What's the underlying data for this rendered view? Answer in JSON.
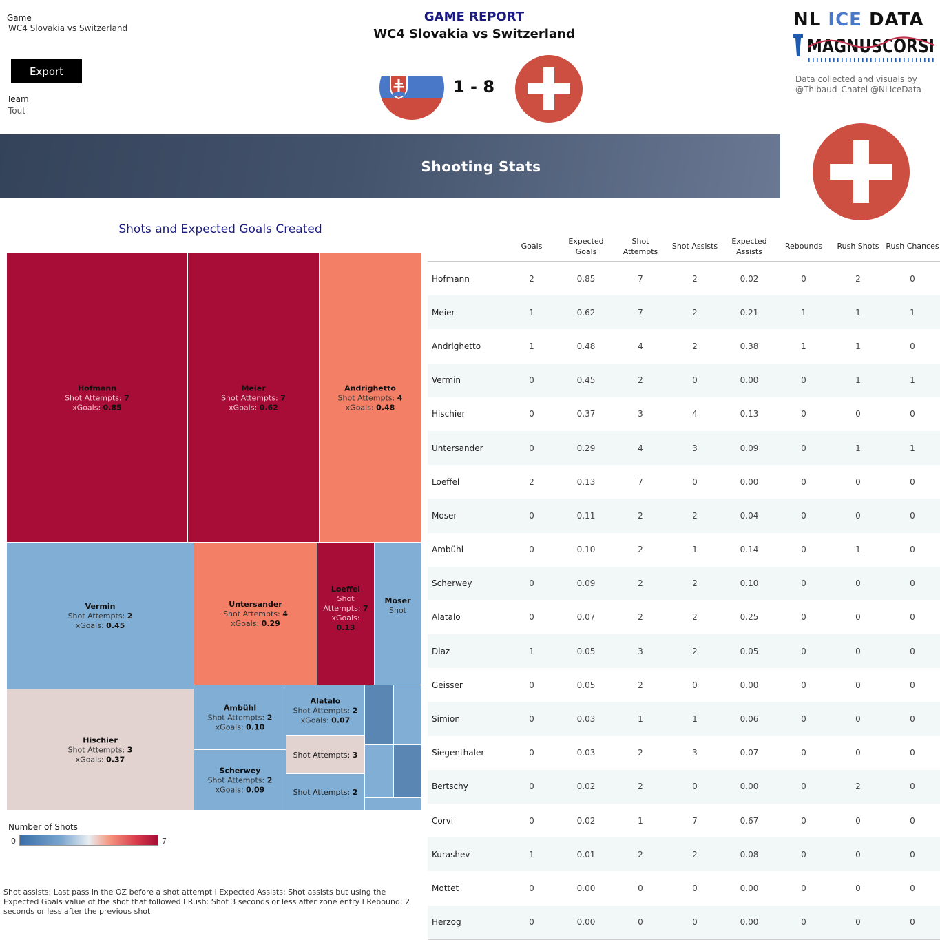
{
  "filters": {
    "game_label": "Game",
    "game_value": "WC4 Slovakia vs Switzerland",
    "export_label": "Export",
    "team_label": "Team",
    "team_value": "Tout"
  },
  "header": {
    "title": "GAME REPORT",
    "subtitle": "WC4 Slovakia vs Switzerland",
    "score": "1 - 8"
  },
  "brand": {
    "name_part1": "NL",
    "name_part2": "ICE",
    "name_part3": "DATA",
    "logo_text": "MAGNUSCORSI",
    "credit_line1": "Data collected and visuals by",
    "credit_line2": "@Thibaud_Chatel @NLIceData"
  },
  "colors": {
    "slovakia_red": "#cd4a3f",
    "slovakia_blue": "#4a78c8",
    "swiss_red": "#cd4f41",
    "title_navy": "#1a1a80"
  },
  "section": {
    "title": "Shooting Stats"
  },
  "treemap_title": "Shots and Expected Goals Created",
  "legend": {
    "title": "Number of Shots",
    "min": "0",
    "max": "7"
  },
  "footnote": "Shot assists: Last pass in the OZ before a shot attempt I Expected Assists: Shot assists but using the Expected Goals value of the shot that followed I Rush: Shot 3 seconds or less after zone entry I Rebound: 2 seconds or less after the previous shot",
  "chart_data": {
    "type": "table",
    "title": "Shots and Expected Goals Created",
    "color_metric": "Number of Shots",
    "color_range": [
      0,
      7
    ],
    "label_attempts": "Shot Attempts:",
    "label_xgoals": "xGoals:",
    "columns": [
      "Goals",
      "Expected Goals",
      "Shot Attempts",
      "Shot Assists",
      "Expected Assists",
      "Rebounds",
      "Rush Shots",
      "Rush Chances"
    ],
    "rows": [
      {
        "player": "Hofmann",
        "goals": "2",
        "xg": "0.85",
        "attempts": "7",
        "assists": "2",
        "xa": "0.02",
        "rebounds": "0",
        "rush_shots": "2",
        "rush_chances": "0"
      },
      {
        "player": "Meier",
        "goals": "1",
        "xg": "0.62",
        "attempts": "7",
        "assists": "2",
        "xa": "0.21",
        "rebounds": "1",
        "rush_shots": "1",
        "rush_chances": "1"
      },
      {
        "player": "Andrighetto",
        "goals": "1",
        "xg": "0.48",
        "attempts": "4",
        "assists": "2",
        "xa": "0.38",
        "rebounds": "1",
        "rush_shots": "1",
        "rush_chances": "0"
      },
      {
        "player": "Vermin",
        "goals": "0",
        "xg": "0.45",
        "attempts": "2",
        "assists": "0",
        "xa": "0.00",
        "rebounds": "0",
        "rush_shots": "1",
        "rush_chances": "1"
      },
      {
        "player": "Hischier",
        "goals": "0",
        "xg": "0.37",
        "attempts": "3",
        "assists": "4",
        "xa": "0.13",
        "rebounds": "0",
        "rush_shots": "0",
        "rush_chances": "0"
      },
      {
        "player": "Untersander",
        "goals": "0",
        "xg": "0.29",
        "attempts": "4",
        "assists": "3",
        "xa": "0.09",
        "rebounds": "0",
        "rush_shots": "1",
        "rush_chances": "1"
      },
      {
        "player": "Loeffel",
        "goals": "2",
        "xg": "0.13",
        "attempts": "7",
        "assists": "0",
        "xa": "0.00",
        "rebounds": "0",
        "rush_shots": "0",
        "rush_chances": "0"
      },
      {
        "player": "Moser",
        "goals": "0",
        "xg": "0.11",
        "attempts": "2",
        "assists": "2",
        "xa": "0.04",
        "rebounds": "0",
        "rush_shots": "0",
        "rush_chances": "0"
      },
      {
        "player": "Ambühl",
        "goals": "0",
        "xg": "0.10",
        "attempts": "2",
        "assists": "1",
        "xa": "0.14",
        "rebounds": "0",
        "rush_shots": "1",
        "rush_chances": "0"
      },
      {
        "player": "Scherwey",
        "goals": "0",
        "xg": "0.09",
        "attempts": "2",
        "assists": "2",
        "xa": "0.10",
        "rebounds": "0",
        "rush_shots": "0",
        "rush_chances": "0"
      },
      {
        "player": "Alatalo",
        "goals": "0",
        "xg": "0.07",
        "attempts": "2",
        "assists": "2",
        "xa": "0.25",
        "rebounds": "0",
        "rush_shots": "0",
        "rush_chances": "0"
      },
      {
        "player": "Diaz",
        "goals": "1",
        "xg": "0.05",
        "attempts": "3",
        "assists": "2",
        "xa": "0.05",
        "rebounds": "0",
        "rush_shots": "0",
        "rush_chances": "0"
      },
      {
        "player": "Geisser",
        "goals": "0",
        "xg": "0.05",
        "attempts": "2",
        "assists": "0",
        "xa": "0.00",
        "rebounds": "0",
        "rush_shots": "0",
        "rush_chances": "0"
      },
      {
        "player": "Simion",
        "goals": "0",
        "xg": "0.03",
        "attempts": "1",
        "assists": "1",
        "xa": "0.06",
        "rebounds": "0",
        "rush_shots": "0",
        "rush_chances": "0"
      },
      {
        "player": "Siegenthaler",
        "goals": "0",
        "xg": "0.03",
        "attempts": "2",
        "assists": "3",
        "xa": "0.07",
        "rebounds": "0",
        "rush_shots": "0",
        "rush_chances": "0"
      },
      {
        "player": "Bertschy",
        "goals": "0",
        "xg": "0.02",
        "attempts": "2",
        "assists": "0",
        "xa": "0.00",
        "rebounds": "0",
        "rush_shots": "2",
        "rush_chances": "0"
      },
      {
        "player": "Corvi",
        "goals": "0",
        "xg": "0.02",
        "attempts": "1",
        "assists": "7",
        "xa": "0.67",
        "rebounds": "0",
        "rush_shots": "0",
        "rush_chances": "0"
      },
      {
        "player": "Kurashev",
        "goals": "1",
        "xg": "0.01",
        "attempts": "2",
        "assists": "2",
        "xa": "0.08",
        "rebounds": "0",
        "rush_shots": "0",
        "rush_chances": "0"
      },
      {
        "player": "Mottet",
        "goals": "0",
        "xg": "0.00",
        "attempts": "0",
        "assists": "0",
        "xa": "0.00",
        "rebounds": "0",
        "rush_shots": "0",
        "rush_chances": "0"
      },
      {
        "player": "Herzog",
        "goals": "0",
        "xg": "0.00",
        "attempts": "0",
        "assists": "0",
        "xa": "0.00",
        "rebounds": "0",
        "rush_shots": "0",
        "rush_chances": "0"
      }
    ],
    "treemap_cells": [
      {
        "player": "Hofmann",
        "attempts": "7",
        "xg": "0.85",
        "color": "#a80d38",
        "show": "full"
      },
      {
        "player": "Meier",
        "attempts": "7",
        "xg": "0.62",
        "color": "#a80d38",
        "show": "full"
      },
      {
        "player": "Andrighetto",
        "attempts": "4",
        "xg": "0.48",
        "color": "#f47f67",
        "show": "full"
      },
      {
        "player": "Vermin",
        "attempts": "2",
        "xg": "0.45",
        "color": "#80aed4",
        "show": "full"
      },
      {
        "player": "Untersander",
        "attempts": "4",
        "xg": "0.29",
        "color": "#f47f67",
        "show": "full"
      },
      {
        "player": "Loeffel",
        "attempts": "7",
        "xg": "0.13",
        "color": "#a80d38",
        "show": "wrap"
      },
      {
        "player": "Moser",
        "attempts": "2",
        "xg": "0.11",
        "color": "#80aed4",
        "show": "name-shot"
      },
      {
        "player": "Hischier",
        "attempts": "3",
        "xg": "0.37",
        "color": "#e2d3d0",
        "show": "full"
      },
      {
        "player": "Ambühl",
        "attempts": "2",
        "xg": "0.10",
        "color": "#80aed4",
        "show": "full"
      },
      {
        "player": "Alatalo",
        "attempts": "2",
        "xg": "0.07",
        "color": "#80aed4",
        "show": "full"
      },
      {
        "player": "Scherwey",
        "attempts": "2",
        "xg": "0.09",
        "color": "#80aed4",
        "show": "full"
      },
      {
        "player": "Diaz",
        "attempts": "3",
        "xg": "0.05",
        "color": "#e2d3d0",
        "show": "attempts"
      },
      {
        "player": "Geisser",
        "attempts": "2",
        "xg": "0.05",
        "color": "#80aed4",
        "show": "attempts"
      },
      {
        "player": "Kurashev",
        "attempts": "2",
        "xg": "0.01",
        "color": "#5a86b4",
        "show": "none"
      },
      {
        "player": "Siegenthaler",
        "attempts": "2",
        "xg": "0.03",
        "color": "#80aed4",
        "show": "none"
      },
      {
        "player": "Simion",
        "attempts": "1",
        "xg": "0.03",
        "color": "#80aed4",
        "show": "none"
      },
      {
        "player": "Corvi",
        "attempts": "1",
        "xg": "0.02",
        "color": "#5a86b4",
        "show": "none"
      },
      {
        "player": "Bertschy",
        "attempts": "2",
        "xg": "0.02",
        "color": "#80aed4",
        "show": "none"
      }
    ]
  }
}
